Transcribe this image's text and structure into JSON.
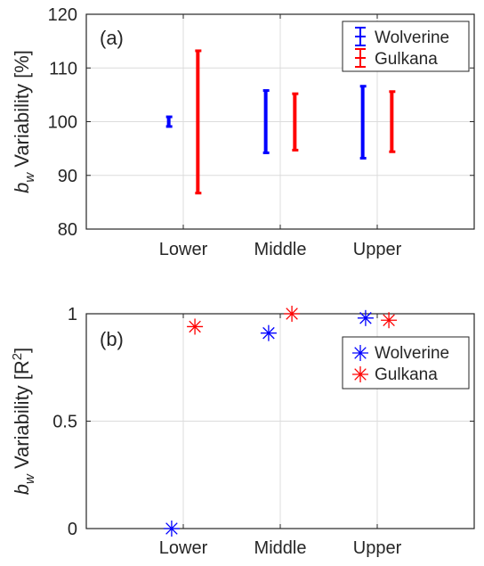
{
  "chart_data": [
    {
      "type": "errorbar",
      "panel_label": "(a)",
      "ylabel_main": "b",
      "ylabel_sub": "w",
      "ylabel_rest": " Variability [%]",
      "categories": [
        "Lower",
        "Middle",
        "Upper"
      ],
      "ylim": [
        80,
        120
      ],
      "yticks": [
        80,
        90,
        100,
        110,
        120
      ],
      "ytick_labels": [
        "80",
        "90",
        "100",
        "110",
        "120"
      ],
      "grid": true,
      "legend_position": "top-right",
      "series": [
        {
          "name": "Wolverine",
          "color": "#0000ff",
          "offset": -0.1,
          "values": [
            {
              "category": "Lower",
              "low": 99.1,
              "high": 100.9
            },
            {
              "category": "Middle",
              "low": 94.2,
              "high": 105.8
            },
            {
              "category": "Upper",
              "low": 93.2,
              "high": 106.6
            }
          ]
        },
        {
          "name": "Gulkana",
          "color": "#ff0000",
          "offset": 0.1,
          "values": [
            {
              "category": "Lower",
              "low": 86.7,
              "high": 113.2
            },
            {
              "category": "Middle",
              "low": 94.7,
              "high": 105.2
            },
            {
              "category": "Upper",
              "low": 94.4,
              "high": 105.6
            }
          ]
        }
      ]
    },
    {
      "type": "scatter",
      "panel_label": "(b)",
      "ylabel_main": "b",
      "ylabel_sub": "w",
      "ylabel_rest": " Variability [R",
      "ylabel_sup": "2",
      "ylabel_end": "]",
      "categories": [
        "Lower",
        "Middle",
        "Upper"
      ],
      "ylim": [
        0,
        1
      ],
      "yticks": [
        0,
        0.5,
        1
      ],
      "ytick_labels": [
        "0",
        "0.5",
        "1"
      ],
      "grid": true,
      "legend_position": "upper-right",
      "marker": "asterisk",
      "series": [
        {
          "name": "Wolverine",
          "color": "#0000ff",
          "offset": -0.1,
          "values": [
            0.0,
            0.91,
            0.98
          ]
        },
        {
          "name": "Gulkana",
          "color": "#ff0000",
          "offset": 0.1,
          "values": [
            0.94,
            1.0,
            0.97
          ]
        }
      ]
    }
  ]
}
